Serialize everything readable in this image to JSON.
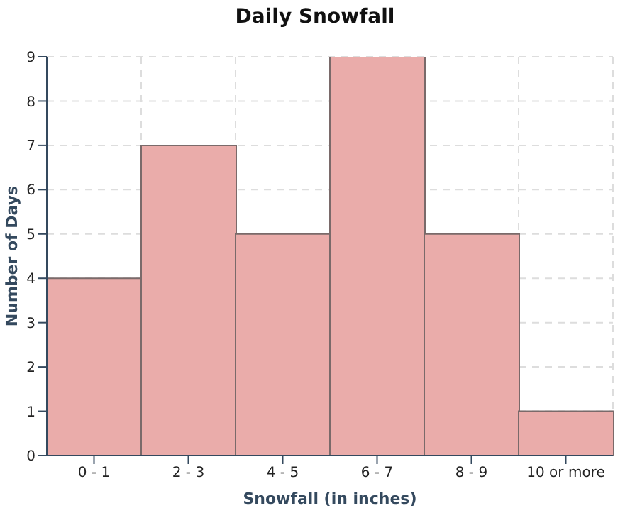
{
  "chart_data": {
    "type": "bar",
    "title": "Daily Snowfall",
    "xlabel": "Snowfall (in inches)",
    "ylabel": "Number of Days",
    "categories": [
      "0 - 1",
      "2 - 3",
      "4 - 5",
      "6 - 7",
      "8 - 9",
      "10 or more"
    ],
    "values": [
      4,
      7,
      5,
      9,
      5,
      1
    ],
    "color": "#eaacaa",
    "ylim": [
      0,
      9
    ],
    "yticks": [
      0,
      1,
      2,
      3,
      4,
      5,
      6,
      7,
      8,
      9
    ],
    "grid": true
  }
}
